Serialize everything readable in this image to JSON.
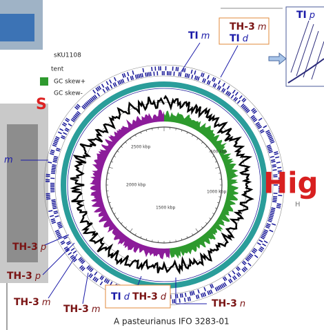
{
  "legend": [
    "sKU1108",
    "tent",
    "GC skew+",
    "GC skew-"
  ],
  "scale_labels": [
    "500 kbp",
    "1000 kbp",
    "1500 kbp",
    "2000 kbp",
    "2500 kbp"
  ],
  "labels": [
    {
      "name": "TI",
      "suffix": "m"
    },
    {
      "name": "TH-3",
      "suffix": "m"
    },
    {
      "name": "TI",
      "suffix": "d"
    },
    {
      "name": "TI",
      "suffix": "p"
    },
    {
      "name": "TH-3",
      "suffix": "p"
    },
    {
      "name": "TH-3",
      "suffix": "p"
    },
    {
      "name": "TH-3",
      "suffix": "m"
    },
    {
      "name": "TH-3",
      "suffix": "m"
    },
    {
      "name": "TI",
      "suffix": "d"
    },
    {
      "name": "TH-3",
      "suffix": "d"
    },
    {
      "name": "TH-3",
      "suffix": "n"
    }
  ],
  "left_label": "m",
  "left_fragment": "S",
  "big_text": "Hig",
  "small_text": "H",
  "caption": "A pasteurianus IFO 3283-01"
}
